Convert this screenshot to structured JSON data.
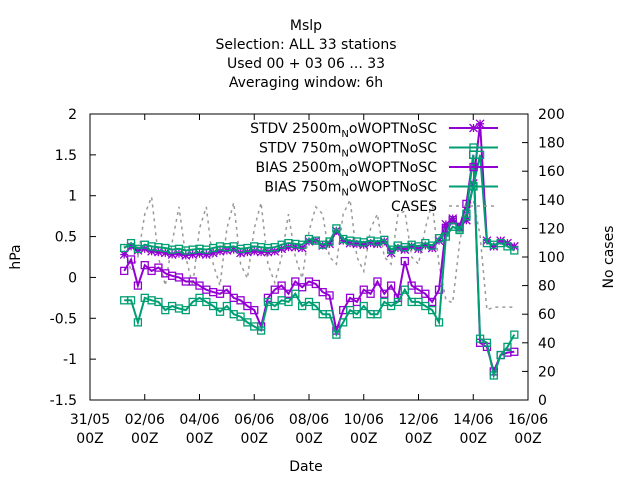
{
  "chart_data": {
    "type": "line",
    "title_lines": [
      "Mslp",
      "Selection: ALL      33 stations",
      "Used  00 + 03 06 ... 33",
      "Averaging window:  6h"
    ],
    "xlabel": "Date",
    "ylabel": "hPa",
    "y2label": "No cases",
    "xlim": [
      0,
      16
    ],
    "ylim": [
      -1.5,
      2
    ],
    "y2lim": [
      0,
      200
    ],
    "x_ticks": [
      {
        "x": 0,
        "line1": "31/05",
        "line2": "00Z"
      },
      {
        "x": 2,
        "line1": "02/06",
        "line2": "00Z"
      },
      {
        "x": 4,
        "line1": "04/06",
        "line2": "00Z"
      },
      {
        "x": 6,
        "line1": "06/06",
        "line2": "00Z"
      },
      {
        "x": 8,
        "line1": "08/06",
        "line2": "00Z"
      },
      {
        "x": 10,
        "line1": "10/06",
        "line2": "00Z"
      },
      {
        "x": 12,
        "line1": "12/06",
        "line2": "00Z"
      },
      {
        "x": 14,
        "line1": "14/06",
        "line2": "00Z"
      },
      {
        "x": 16,
        "line1": "16/06",
        "line2": "00Z"
      }
    ],
    "y_ticks": [
      -1.5,
      -1,
      -0.5,
      0,
      0.5,
      1,
      1.5,
      2
    ],
    "y_tick_labels": [
      "-1.5",
      "-1",
      "-0.5",
      "0",
      "0.5",
      "1",
      "1.5",
      "2"
    ],
    "y2_ticks": [
      0,
      20,
      40,
      60,
      80,
      100,
      120,
      140,
      160,
      180,
      200
    ],
    "legend_position": "top-right",
    "series": [
      {
        "name": "STDV 2500m",
        "name_sub": "N",
        "name_tail": "oWOPTNoSC",
        "color": "#9400d3",
        "marker": "star",
        "axis": "y",
        "dash": "",
        "x": [
          1.25,
          1.5,
          1.75,
          2,
          2.25,
          2.5,
          2.75,
          3,
          3.25,
          3.5,
          3.75,
          4,
          4.25,
          4.5,
          4.75,
          5,
          5.25,
          5.5,
          5.75,
          6,
          6.25,
          6.5,
          6.75,
          7,
          7.25,
          7.5,
          7.75,
          8,
          8.25,
          8.5,
          8.75,
          9,
          9.25,
          9.5,
          9.75,
          10,
          10.25,
          10.5,
          10.75,
          11,
          11.25,
          11.5,
          11.75,
          12,
          12.25,
          12.5,
          12.75,
          13,
          13.25,
          13.5,
          13.75,
          14,
          14.25,
          14.5,
          14.75,
          15,
          15.25,
          15.5
        ],
        "y": [
          0.28,
          0.38,
          0.33,
          0.35,
          0.32,
          0.31,
          0.3,
          0.28,
          0.29,
          0.27,
          0.28,
          0.29,
          0.28,
          0.3,
          0.32,
          0.33,
          0.34,
          0.3,
          0.31,
          0.32,
          0.31,
          0.31,
          0.32,
          0.35,
          0.37,
          0.37,
          0.36,
          0.44,
          0.45,
          0.39,
          0.41,
          0.57,
          0.45,
          0.42,
          0.41,
          0.4,
          0.42,
          0.41,
          0.44,
          0.3,
          0.36,
          0.34,
          0.38,
          0.35,
          0.39,
          0.36,
          0.45,
          0.65,
          0.72,
          0.62,
          0.7,
          1.15,
          1.88,
          0.45,
          0.38,
          0.45,
          0.42,
          0.38
        ]
      },
      {
        "name": "STDV 750m",
        "name_sub": "N",
        "name_tail": "oWOPTNoSC",
        "color": "#009e73",
        "marker": "box",
        "axis": "y",
        "dash": "",
        "x": [
          1.25,
          1.5,
          1.75,
          2,
          2.25,
          2.5,
          2.75,
          3,
          3.25,
          3.5,
          3.75,
          4,
          4.25,
          4.5,
          4.75,
          5,
          5.25,
          5.5,
          5.75,
          6,
          6.25,
          6.5,
          6.75,
          7,
          7.25,
          7.5,
          7.75,
          8,
          8.25,
          8.5,
          8.75,
          9,
          9.25,
          9.5,
          9.75,
          10,
          10.25,
          10.5,
          10.75,
          11,
          11.25,
          11.5,
          11.75,
          12,
          12.25,
          12.5,
          12.75,
          13,
          13.25,
          13.5,
          13.75,
          14,
          14.25,
          14.5,
          14.75,
          15,
          15.25,
          15.5
        ],
        "y": [
          0.36,
          0.42,
          0.35,
          0.4,
          0.38,
          0.37,
          0.36,
          0.34,
          0.35,
          0.33,
          0.34,
          0.35,
          0.34,
          0.36,
          0.38,
          0.37,
          0.38,
          0.35,
          0.36,
          0.38,
          0.37,
          0.36,
          0.37,
          0.4,
          0.42,
          0.41,
          0.4,
          0.47,
          0.45,
          0.4,
          0.44,
          0.6,
          0.47,
          0.45,
          0.44,
          0.43,
          0.45,
          0.44,
          0.46,
          0.34,
          0.39,
          0.37,
          0.4,
          0.38,
          0.42,
          0.39,
          0.48,
          0.55,
          0.7,
          0.6,
          0.75,
          1.12,
          1.5,
          0.42,
          0.4,
          0.42,
          0.38,
          0.33
        ]
      },
      {
        "name": "BIAS 2500m",
        "name_sub": "N",
        "name_tail": "oWOPTNoSC",
        "color": "#9400d3",
        "marker": "box",
        "axis": "y",
        "dash": "",
        "x": [
          1.25,
          1.5,
          1.75,
          2,
          2.25,
          2.5,
          2.75,
          3,
          3.25,
          3.5,
          3.75,
          4,
          4.25,
          4.5,
          4.75,
          5,
          5.25,
          5.5,
          5.75,
          6,
          6.25,
          6.5,
          6.75,
          7,
          7.25,
          7.5,
          7.75,
          8,
          8.25,
          8.5,
          8.75,
          9,
          9.25,
          9.5,
          9.75,
          10,
          10.25,
          10.5,
          10.75,
          11,
          11.25,
          11.5,
          11.75,
          12,
          12.25,
          12.5,
          12.75,
          13,
          13.25,
          13.5,
          13.75,
          14,
          14.25,
          14.5,
          14.75,
          15,
          15.25,
          15.5
        ],
        "y": [
          0.08,
          0.22,
          -0.1,
          0.15,
          0.08,
          0.12,
          0.05,
          0.02,
          0.0,
          -0.05,
          -0.05,
          -0.1,
          -0.15,
          -0.18,
          -0.2,
          -0.15,
          -0.25,
          -0.28,
          -0.35,
          -0.4,
          -0.6,
          -0.25,
          -0.15,
          -0.1,
          -0.2,
          -0.05,
          -0.12,
          -0.05,
          -0.08,
          -0.18,
          -0.22,
          -0.65,
          -0.4,
          -0.25,
          -0.3,
          -0.15,
          -0.2,
          -0.05,
          -0.2,
          -0.1,
          -0.25,
          0.2,
          -0.1,
          -0.15,
          -0.2,
          -0.3,
          -0.15,
          0.6,
          0.7,
          0.62,
          0.9,
          1.5,
          -0.8,
          -0.85,
          -1.15,
          -0.95,
          -0.92,
          -0.91
        ]
      },
      {
        "name": "BIAS 750m",
        "name_sub": "N",
        "name_tail": "oWOPTNoSC",
        "color": "#009e73",
        "marker": "box",
        "axis": "y",
        "dash": "",
        "x": [
          1.25,
          1.5,
          1.75,
          2,
          2.25,
          2.5,
          2.75,
          3,
          3.25,
          3.5,
          3.75,
          4,
          4.25,
          4.5,
          4.75,
          5,
          5.25,
          5.5,
          5.75,
          6,
          6.25,
          6.5,
          6.75,
          7,
          7.25,
          7.5,
          7.75,
          8,
          8.25,
          8.5,
          8.75,
          9,
          9.25,
          9.5,
          9.75,
          10,
          10.25,
          10.5,
          10.75,
          11,
          11.25,
          11.5,
          11.75,
          12,
          12.25,
          12.5,
          12.75,
          13,
          13.25,
          13.5,
          13.75,
          14,
          14.25,
          14.5,
          14.75,
          15,
          15.25,
          15.5
        ],
        "y": [
          -0.28,
          -0.28,
          -0.55,
          -0.25,
          -0.28,
          -0.3,
          -0.4,
          -0.35,
          -0.38,
          -0.4,
          -0.3,
          -0.25,
          -0.3,
          -0.35,
          -0.42,
          -0.35,
          -0.45,
          -0.48,
          -0.55,
          -0.6,
          -0.65,
          -0.3,
          -0.35,
          -0.28,
          -0.3,
          -0.2,
          -0.35,
          -0.3,
          -0.35,
          -0.45,
          -0.45,
          -0.7,
          -0.55,
          -0.4,
          -0.45,
          -0.35,
          -0.45,
          -0.45,
          -0.3,
          -0.35,
          -0.3,
          -0.15,
          -0.3,
          -0.3,
          -0.35,
          -0.4,
          -0.55,
          0.5,
          0.62,
          0.58,
          0.78,
          1.5,
          -0.75,
          -0.8,
          -1.2,
          -0.95,
          -0.85,
          -0.7
        ]
      },
      {
        "name": "CASES",
        "name_sub": "",
        "name_tail": "",
        "color": "#999999",
        "marker": "",
        "axis": "y2",
        "dash": "3,4",
        "x": [
          1.25,
          1.5,
          1.75,
          2,
          2.25,
          2.5,
          2.75,
          3,
          3.25,
          3.5,
          3.75,
          4,
          4.25,
          4.5,
          4.75,
          5,
          5.25,
          5.5,
          5.75,
          6,
          6.25,
          6.5,
          6.75,
          7,
          7.25,
          7.5,
          7.75,
          8,
          8.25,
          8.5,
          8.75,
          9,
          9.25,
          9.5,
          9.75,
          10,
          10.25,
          10.5,
          10.75,
          11,
          11.25,
          11.5,
          11.75,
          12,
          12.25,
          12.5,
          12.75,
          13,
          13.25,
          13.5,
          13.75,
          14,
          14.25,
          14.5,
          14.75,
          15,
          15.25,
          15.5
        ],
        "y": [
          108,
          90,
          100,
          130,
          142,
          100,
          80,
          110,
          135,
          100,
          80,
          120,
          135,
          95,
          80,
          120,
          138,
          95,
          85,
          120,
          138,
          95,
          82,
          100,
          130,
          100,
          85,
          118,
          135,
          130,
          100,
          95,
          130,
          140,
          100,
          90,
          120,
          130,
          100,
          95,
          130,
          132,
          100,
          95,
          120,
          138,
          95,
          70,
          68,
          110,
          135,
          140,
          115,
          63,
          65,
          65,
          65,
          65
        ]
      }
    ]
  }
}
